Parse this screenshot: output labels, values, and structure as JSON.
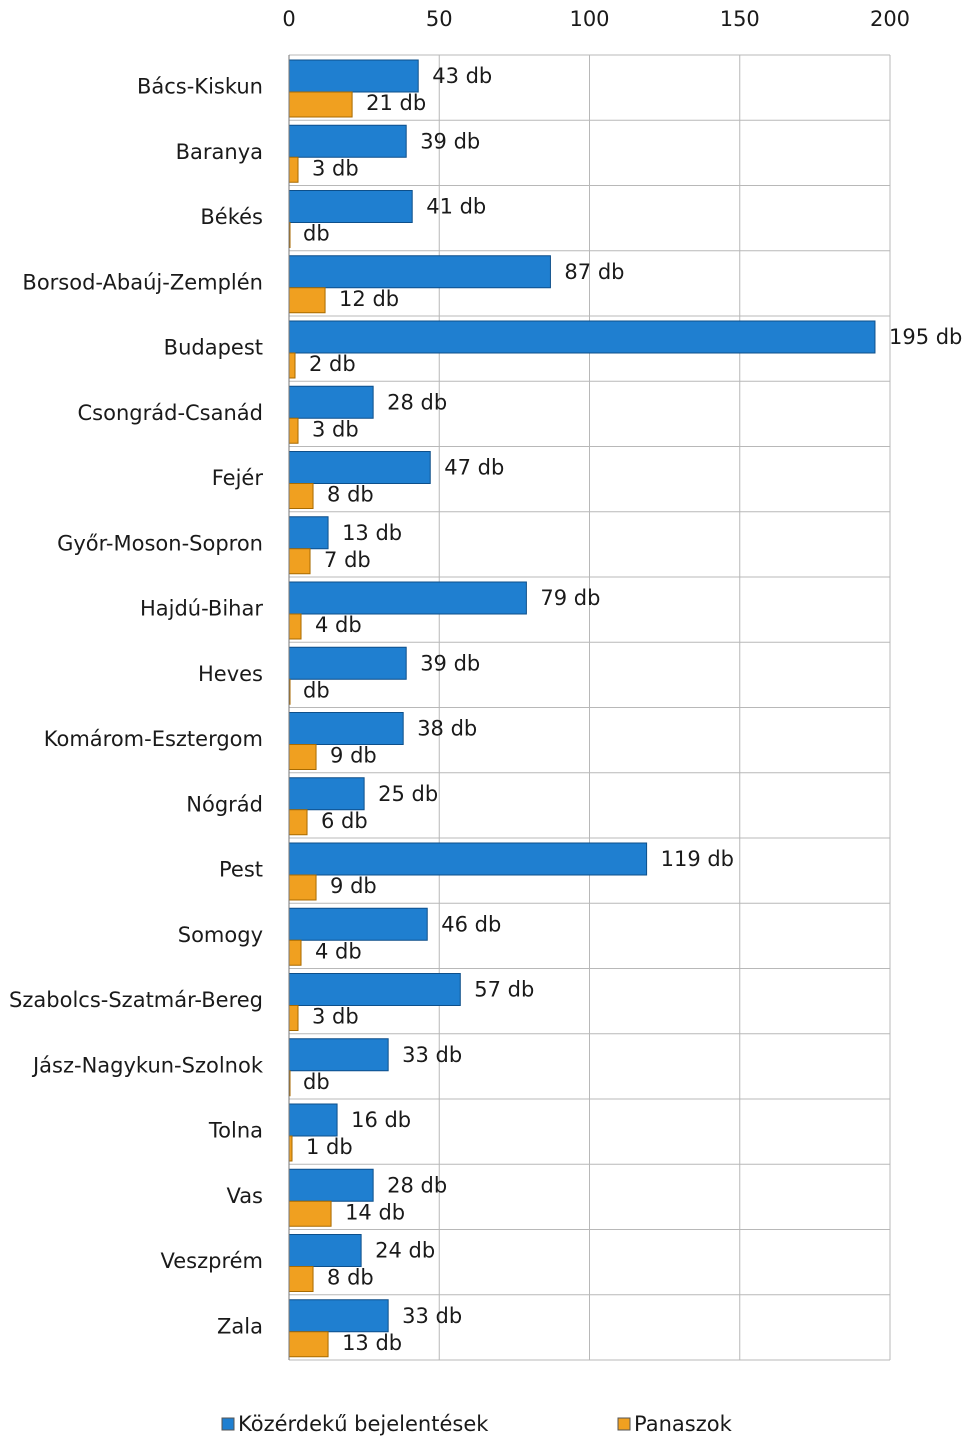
{
  "chart_data": {
    "type": "bar",
    "orientation": "horizontal",
    "categories": [
      "Bács-Kiskun",
      "Baranya",
      "Békés",
      "Borsod-Abaúj-Zemplén",
      "Budapest",
      "Csongrád-Csanád",
      "Fejér",
      "Győr-Moson-Sopron",
      "Hajdú-Bihar",
      "Heves",
      "Komárom-Esztergom",
      "Nógrád",
      "Pest",
      "Somogy",
      "Szabolcs-Szatmár-Bereg",
      "Jász-Nagykun-Szolnok",
      "Tolna",
      "Vas",
      "Veszprém",
      "Zala"
    ],
    "series": [
      {
        "name": "Közérdekű bejelentések",
        "color": "#1f7fd0",
        "values": [
          43,
          39,
          41,
          87,
          195,
          28,
          47,
          13,
          79,
          39,
          38,
          25,
          119,
          46,
          57,
          33,
          16,
          28,
          24,
          33
        ],
        "value_labels": [
          "43 db",
          "39 db",
          "41 db",
          "87 db",
          "195 db",
          "28 db",
          "47 db",
          "13 db",
          "79 db",
          "39 db",
          "38 db",
          "25 db",
          "119 db",
          "46 db",
          "57 db",
          "33 db",
          "16 db",
          "28 db",
          "24 db",
          "33 db"
        ]
      },
      {
        "name": "Panaszok",
        "color": "#f0a020",
        "values": [
          21,
          3,
          0,
          12,
          2,
          3,
          8,
          7,
          4,
          0,
          9,
          6,
          9,
          4,
          3,
          0,
          1,
          14,
          8,
          13
        ],
        "value_labels": [
          "21 db",
          "3 db",
          "db",
          "12 db",
          "2 db",
          "3 db",
          "8 db",
          "7 db",
          "4 db",
          "db",
          "9 db",
          "6 db",
          "9 db",
          "4 db",
          "3 db",
          "db",
          "1 db",
          "14 db",
          "8 db",
          "13 db"
        ]
      }
    ],
    "xlim": [
      0,
      200
    ],
    "xticks": [
      0,
      50,
      100,
      150,
      200
    ],
    "grid": true,
    "legend": "bottom"
  }
}
